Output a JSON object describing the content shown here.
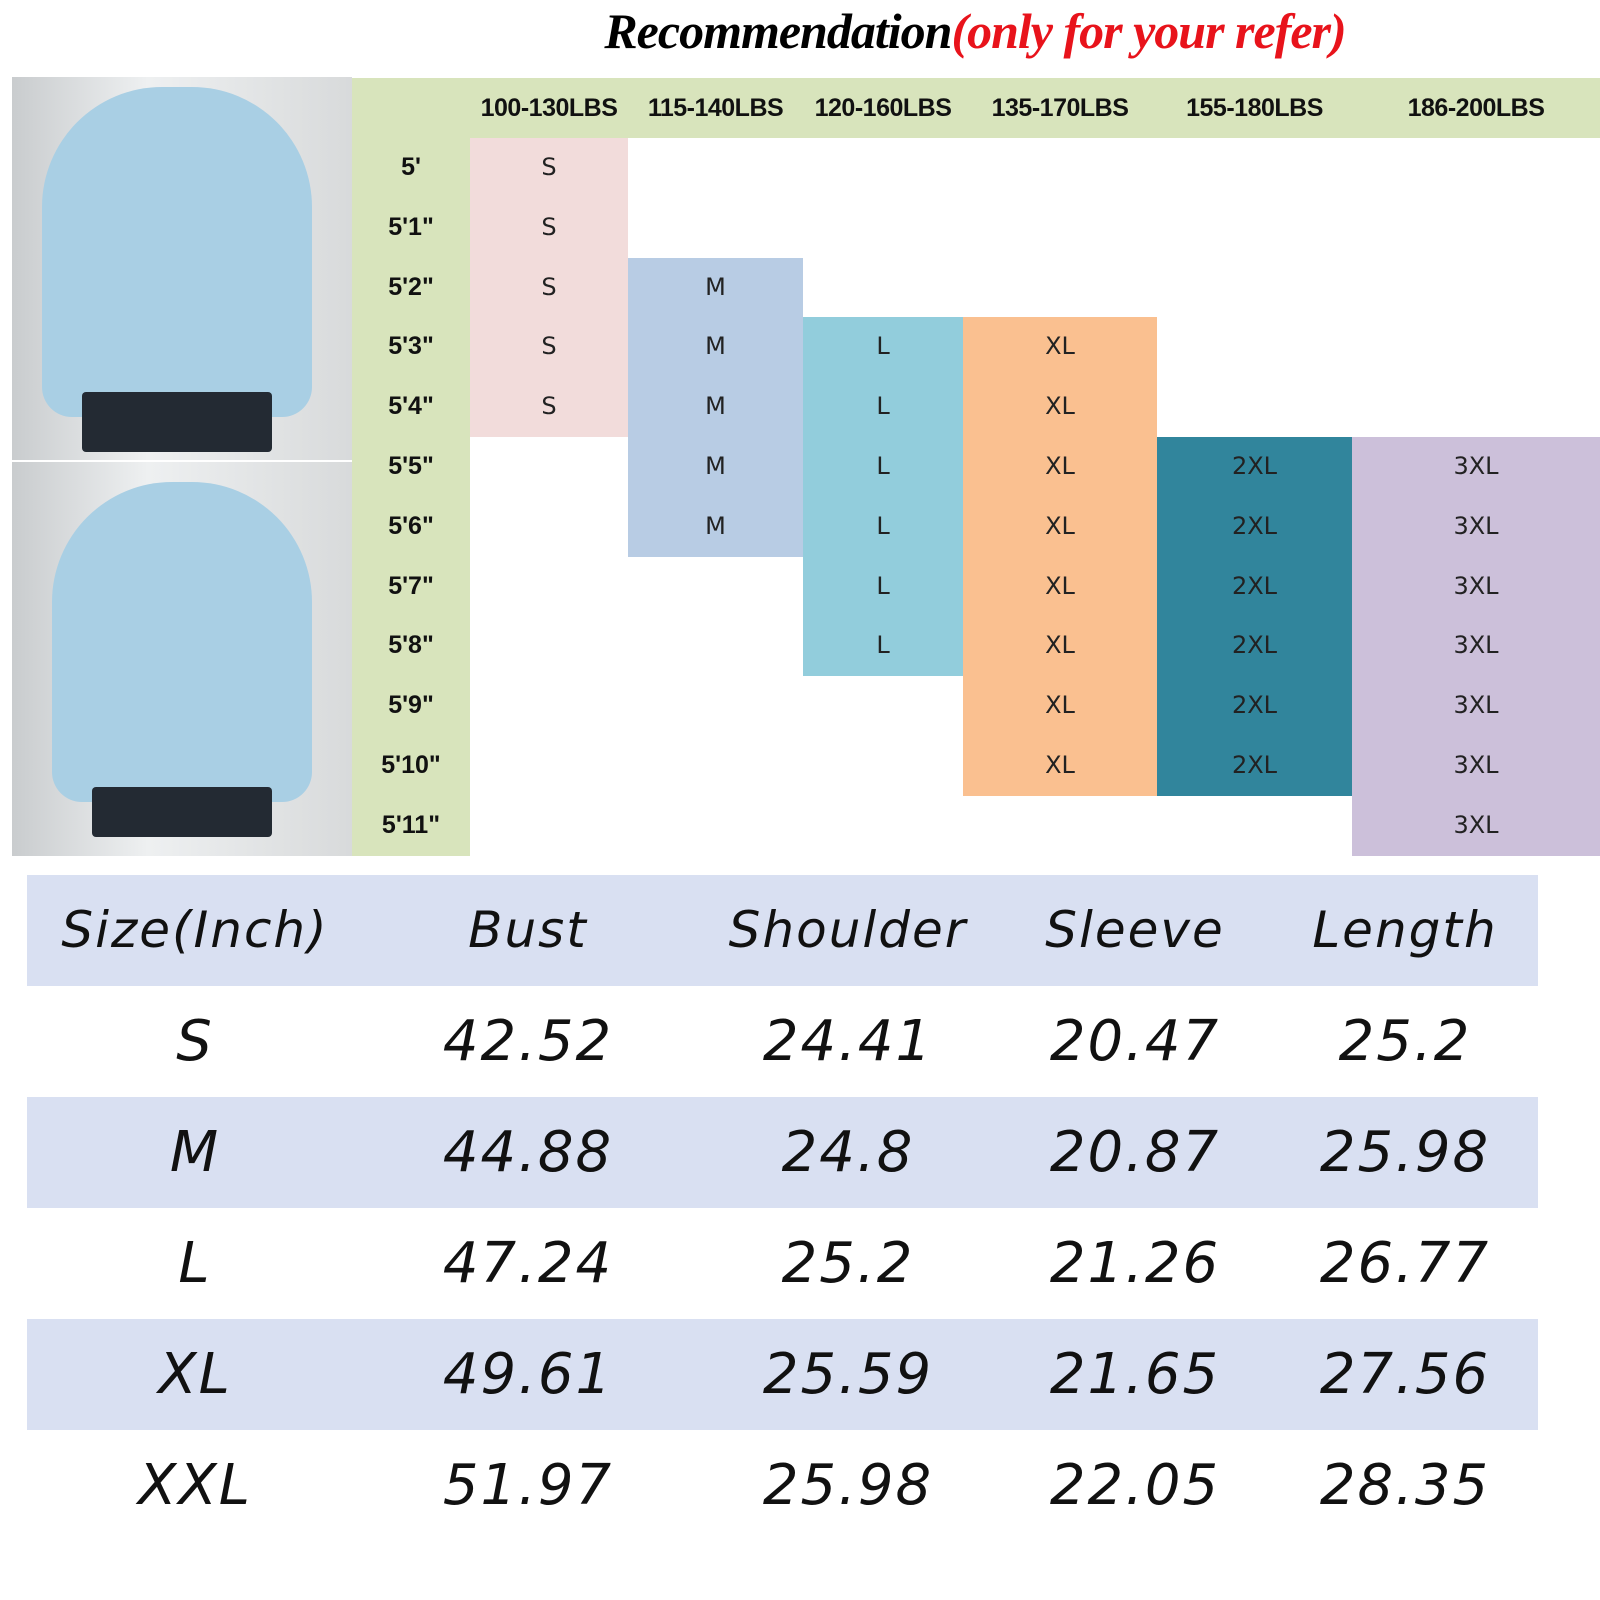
{
  "title": {
    "main": "Recommendation",
    "note": "(only for your refer)"
  },
  "recommendation": {
    "weights": [
      "100-130LBS",
      "115-140LBS",
      "120-160LBS",
      "135-170LBS",
      "155-180LBS",
      "186-200LBS"
    ],
    "heights": [
      "5'",
      "5'1\"",
      "5'2\"",
      "5'3\"",
      "5'4\"",
      "5'5\"",
      "5'6\"",
      "5'7\"",
      "5'8\"",
      "5'9\"",
      "5'10\"",
      "5'11\""
    ],
    "bands": [
      {
        "size": "S",
        "start_row": 0,
        "end_row": 4,
        "color": "#f2dcdb"
      },
      {
        "size": "M",
        "start_row": 2,
        "end_row": 6,
        "color": "#b8cce4"
      },
      {
        "size": "L",
        "start_row": 3,
        "end_row": 8,
        "color": "#92cddc"
      },
      {
        "size": "XL",
        "start_row": 3,
        "end_row": 10,
        "color": "#fac090"
      },
      {
        "size": "2XL",
        "start_row": 5,
        "end_row": 10,
        "color": "#31859c"
      },
      {
        "size": "3XL",
        "start_row": 5,
        "end_row": 11,
        "color": "#ccc0da"
      }
    ]
  },
  "measurements": {
    "headers": [
      "Size(Inch)",
      "Bust",
      "Shoulder",
      "Sleeve",
      "Length"
    ],
    "rows": [
      [
        "S",
        "42.52",
        "24.41",
        "20.47",
        "25.2"
      ],
      [
        "M",
        "44.88",
        "24.8",
        "20.87",
        "25.98"
      ],
      [
        "L",
        "47.24",
        "25.2",
        "21.26",
        "26.77"
      ],
      [
        "XL",
        "49.61",
        "25.59",
        "21.65",
        "27.56"
      ],
      [
        "XXL",
        "51.97",
        "25.98",
        "22.05",
        "28.35"
      ]
    ],
    "stripe_color": "#d9e0f2"
  }
}
